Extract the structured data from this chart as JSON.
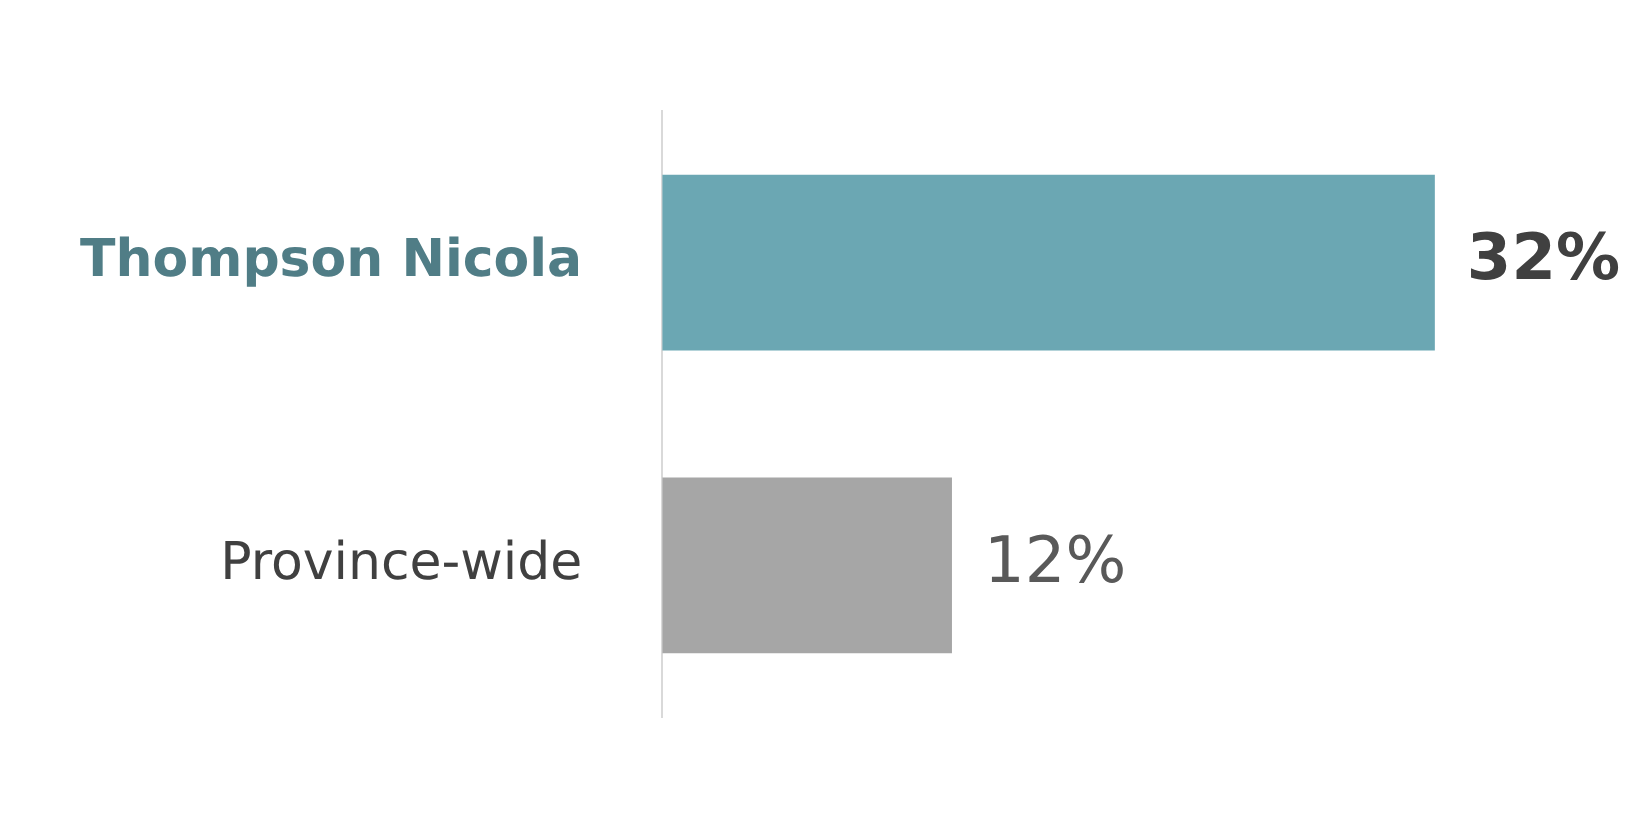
{
  "chart_data": {
    "type": "bar",
    "orientation": "horizontal",
    "categories": [
      "Thompson Nicola",
      "Province-wide"
    ],
    "values": [
      32,
      12
    ],
    "colors": [
      "#6ba7b3",
      "#a6a6a6"
    ],
    "value_labels": [
      "32%",
      "12%"
    ],
    "tick_labels": "y"
  }
}
